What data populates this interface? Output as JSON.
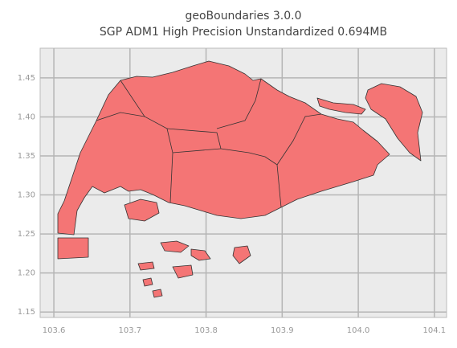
{
  "chart_data": {
    "type": "map",
    "title": "geoBoundaries 3.0.0",
    "subtitle": "SGP ADM1 High Precision Unstandardized 0.694MB",
    "xlim": [
      103.582,
      104.116
    ],
    "ylim": [
      1.143,
      1.488
    ],
    "xticks": [
      103.6,
      103.7,
      103.8,
      103.9,
      {
        "value": 104.0,
        "label": "104.0"
      },
      104.1
    ],
    "yticks": [
      1.15,
      {
        "value": 1.2,
        "label": "1.20"
      },
      1.25,
      {
        "value": 1.3,
        "label": "1.30"
      },
      1.35,
      {
        "value": 1.4,
        "label": "1.40"
      },
      1.45
    ],
    "grid": true,
    "color": "#f47575"
  }
}
